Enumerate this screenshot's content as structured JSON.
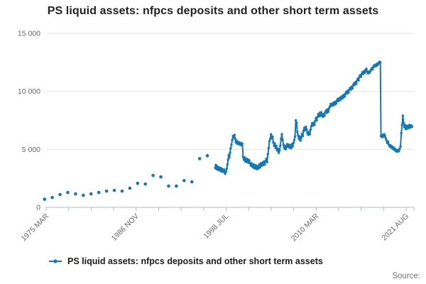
{
  "title": "PS liquid assets: nfpcs deposits and other short term assets",
  "legend": {
    "label": "PS liquid assets: nfpcs deposits and other short term assets"
  },
  "source_label": "Source:",
  "colors": {
    "series": "#1478b4",
    "grid": "#e4e4e4",
    "axis": "#a9bccd",
    "tick_label": "#666666"
  },
  "chart_data": {
    "type": "line",
    "title": "PS liquid assets: nfpcs deposits and other short term assets",
    "legend_position": "bottom",
    "grid": true,
    "ylim": [
      0,
      15000
    ],
    "x_domain": [
      1975.21,
      2022.63
    ],
    "yticks": [
      {
        "value": 0,
        "label": "0"
      },
      {
        "value": 5000,
        "label": "5 000"
      },
      {
        "value": 10000,
        "label": "10 000"
      },
      {
        "value": 15000,
        "label": "15 000"
      }
    ],
    "xticks": {
      "tick_count": 17,
      "labeled": [
        {
          "index": 0,
          "label": "1975 MAR"
        },
        {
          "index": 4,
          "label": "1986 NOV"
        },
        {
          "index": 8,
          "label": "1998 JUL"
        },
        {
          "index": 12,
          "label": "2010 MAR"
        },
        {
          "index": 16,
          "label": "2021 AUG"
        }
      ]
    },
    "series": [
      {
        "name": "PS liquid assets: nfpcs deposits and other short term assets",
        "annual_points": [
          [
            1975,
            700
          ],
          [
            1976,
            850
          ],
          [
            1977,
            1100
          ],
          [
            1978,
            1280
          ],
          [
            1979,
            1160
          ],
          [
            1980,
            1040
          ],
          [
            1981,
            1160
          ],
          [
            1982,
            1280
          ],
          [
            1983,
            1400
          ],
          [
            1984,
            1460
          ],
          [
            1985,
            1400
          ],
          [
            1986,
            1650
          ],
          [
            1987,
            2070
          ],
          [
            1988,
            2010
          ],
          [
            1989,
            2750
          ],
          [
            1990,
            2620
          ],
          [
            1991,
            1830
          ],
          [
            1992,
            1830
          ],
          [
            1993,
            2300
          ],
          [
            1994,
            2200
          ],
          [
            1995,
            4200
          ],
          [
            1996,
            4450
          ]
        ],
        "monthly_points": [
          [
            1997.0,
            3400
          ],
          [
            1997.08,
            3650
          ],
          [
            1997.17,
            3300
          ],
          [
            1997.25,
            3550
          ],
          [
            1997.33,
            3250
          ],
          [
            1997.42,
            3450
          ],
          [
            1997.5,
            3200
          ],
          [
            1997.58,
            3420
          ],
          [
            1997.67,
            3150
          ],
          [
            1997.75,
            3380
          ],
          [
            1997.83,
            3100
          ],
          [
            1997.92,
            3300
          ],
          [
            1998.0,
            3200
          ],
          [
            1998.08,
            3050
          ],
          [
            1998.17,
            3250
          ],
          [
            1998.29,
            2900
          ],
          [
            1998.42,
            3100
          ],
          [
            1998.5,
            3350
          ],
          [
            1998.58,
            3700
          ],
          [
            1998.67,
            4100
          ],
          [
            1998.75,
            4500
          ],
          [
            1998.83,
            4300
          ],
          [
            1998.92,
            4700
          ],
          [
            1999.0,
            5100
          ],
          [
            1999.1,
            5400
          ],
          [
            1999.2,
            5800
          ],
          [
            1999.3,
            6150
          ],
          [
            1999.4,
            6000
          ],
          [
            1999.5,
            6250
          ],
          [
            1999.58,
            5900
          ],
          [
            1999.67,
            5600
          ],
          [
            1999.75,
            5750
          ],
          [
            1999.83,
            5500
          ],
          [
            1999.92,
            5650
          ],
          [
            2000.0,
            5450
          ],
          [
            2000.1,
            5600
          ],
          [
            2000.2,
            5400
          ],
          [
            2000.3,
            5550
          ],
          [
            2000.4,
            5350
          ],
          [
            2000.5,
            5500
          ],
          [
            2000.6,
            4350
          ],
          [
            2000.7,
            4100
          ],
          [
            2000.8,
            4300
          ],
          [
            2000.9,
            3950
          ],
          [
            2001.0,
            4200
          ],
          [
            2001.1,
            3900
          ],
          [
            2001.2,
            4150
          ],
          [
            2001.3,
            3850
          ],
          [
            2001.4,
            4050
          ],
          [
            2001.5,
            3800
          ],
          [
            2001.6,
            3600
          ],
          [
            2001.7,
            3800
          ],
          [
            2001.8,
            3500
          ],
          [
            2001.9,
            3700
          ],
          [
            2002.0,
            3400
          ],
          [
            2002.1,
            3650
          ],
          [
            2002.2,
            3350
          ],
          [
            2002.3,
            3600
          ],
          [
            2002.4,
            3300
          ],
          [
            2002.5,
            3550
          ],
          [
            2002.6,
            3350
          ],
          [
            2002.7,
            3700
          ],
          [
            2002.8,
            3450
          ],
          [
            2002.9,
            3800
          ],
          [
            2003.0,
            3600
          ],
          [
            2003.1,
            3850
          ],
          [
            2003.2,
            3650
          ],
          [
            2003.3,
            3950
          ],
          [
            2003.4,
            3700
          ],
          [
            2003.5,
            4000
          ],
          [
            2003.6,
            4200
          ],
          [
            2003.7,
            3900
          ],
          [
            2003.8,
            4600
          ],
          [
            2003.9,
            5100
          ],
          [
            2004.0,
            5700
          ],
          [
            2004.1,
            5900
          ],
          [
            2004.2,
            6300
          ],
          [
            2004.3,
            5950
          ],
          [
            2004.4,
            6100
          ],
          [
            2004.5,
            5600
          ],
          [
            2004.6,
            5300
          ],
          [
            2004.7,
            5500
          ],
          [
            2004.8,
            5100
          ],
          [
            2004.9,
            5300
          ],
          [
            2005.0,
            4900
          ],
          [
            2005.1,
            5050
          ],
          [
            2005.2,
            4700
          ],
          [
            2005.3,
            4900
          ],
          [
            2005.4,
            5300
          ],
          [
            2005.5,
            5900
          ],
          [
            2005.6,
            6300
          ],
          [
            2005.7,
            5800
          ],
          [
            2005.8,
            5400
          ],
          [
            2005.9,
            5100
          ],
          [
            2006.0,
            5300
          ],
          [
            2006.1,
            5000
          ],
          [
            2006.2,
            5250
          ],
          [
            2006.3,
            5450
          ],
          [
            2006.4,
            5200
          ],
          [
            2006.5,
            5400
          ],
          [
            2006.6,
            5150
          ],
          [
            2006.7,
            5350
          ],
          [
            2006.8,
            5100
          ],
          [
            2006.9,
            5450
          ],
          [
            2007.0,
            5250
          ],
          [
            2007.1,
            5550
          ],
          [
            2007.2,
            5800
          ],
          [
            2007.3,
            6100
          ],
          [
            2007.4,
            7500
          ],
          [
            2007.5,
            7300
          ],
          [
            2007.6,
            6500
          ],
          [
            2007.7,
            6200
          ],
          [
            2007.8,
            5900
          ],
          [
            2007.9,
            6100
          ],
          [
            2008.0,
            5750
          ],
          [
            2008.1,
            6000
          ],
          [
            2008.2,
            6350
          ],
          [
            2008.3,
            6150
          ],
          [
            2008.4,
            6600
          ],
          [
            2008.5,
            6850
          ],
          [
            2008.6,
            6650
          ],
          [
            2008.7,
            6950
          ],
          [
            2008.8,
            6700
          ],
          [
            2008.9,
            6400
          ],
          [
            2009.0,
            6250
          ],
          [
            2009.1,
            6500
          ],
          [
            2009.2,
            6300
          ],
          [
            2009.3,
            6700
          ],
          [
            2009.4,
            7000
          ],
          [
            2009.5,
            7250
          ],
          [
            2009.6,
            7050
          ],
          [
            2009.7,
            7300
          ],
          [
            2009.8,
            7100
          ],
          [
            2009.9,
            7450
          ],
          [
            2010.0,
            7700
          ],
          [
            2010.1,
            7500
          ],
          [
            2010.2,
            7800
          ],
          [
            2010.3,
            8050
          ],
          [
            2010.4,
            7850
          ],
          [
            2010.5,
            8150
          ],
          [
            2010.6,
            7900
          ],
          [
            2010.7,
            8200
          ],
          [
            2010.8,
            7950
          ],
          [
            2010.9,
            7800
          ],
          [
            2011.0,
            8050
          ],
          [
            2011.1,
            7900
          ],
          [
            2011.2,
            8200
          ],
          [
            2011.3,
            8350
          ],
          [
            2011.4,
            8150
          ],
          [
            2011.5,
            8450
          ],
          [
            2011.6,
            8250
          ],
          [
            2011.7,
            8550
          ],
          [
            2011.8,
            8700
          ],
          [
            2011.9,
            8900
          ],
          [
            2012.0,
            8750
          ],
          [
            2012.1,
            8950
          ],
          [
            2012.2,
            8800
          ],
          [
            2012.3,
            9050
          ],
          [
            2012.4,
            8850
          ],
          [
            2012.5,
            9100
          ],
          [
            2012.6,
            8950
          ],
          [
            2012.7,
            9200
          ],
          [
            2012.8,
            9350
          ],
          [
            2012.9,
            9150
          ],
          [
            2013.0,
            9400
          ],
          [
            2013.1,
            9250
          ],
          [
            2013.2,
            9500
          ],
          [
            2013.3,
            9350
          ],
          [
            2013.4,
            9600
          ],
          [
            2013.5,
            9450
          ],
          [
            2013.6,
            9700
          ],
          [
            2013.7,
            9550
          ],
          [
            2013.8,
            9800
          ],
          [
            2013.9,
            9950
          ],
          [
            2014.0,
            9800
          ],
          [
            2014.1,
            10050
          ],
          [
            2014.2,
            9900
          ],
          [
            2014.3,
            10150
          ],
          [
            2014.4,
            10300
          ],
          [
            2014.5,
            10150
          ],
          [
            2014.6,
            10400
          ],
          [
            2014.7,
            10250
          ],
          [
            2014.8,
            10550
          ],
          [
            2014.9,
            10700
          ],
          [
            2015.0,
            10550
          ],
          [
            2015.1,
            10800
          ],
          [
            2015.2,
            10650
          ],
          [
            2015.3,
            10950
          ],
          [
            2015.4,
            11100
          ],
          [
            2015.5,
            10950
          ],
          [
            2015.6,
            11250
          ],
          [
            2015.7,
            11400
          ],
          [
            2015.8,
            11250
          ],
          [
            2015.9,
            11500
          ],
          [
            2016.0,
            11650
          ],
          [
            2016.1,
            11500
          ],
          [
            2016.2,
            11750
          ],
          [
            2016.3,
            11600
          ],
          [
            2016.4,
            11850
          ],
          [
            2016.5,
            11950
          ],
          [
            2016.6,
            11700
          ],
          [
            2016.7,
            11550
          ],
          [
            2016.8,
            11700
          ],
          [
            2016.9,
            11600
          ],
          [
            2017.0,
            11750
          ],
          [
            2017.1,
            11850
          ],
          [
            2017.2,
            12000
          ],
          [
            2017.3,
            11900
          ],
          [
            2017.4,
            12100
          ],
          [
            2017.5,
            12250
          ],
          [
            2017.6,
            12150
          ],
          [
            2017.7,
            12300
          ],
          [
            2017.8,
            12200
          ],
          [
            2017.9,
            12400
          ],
          [
            2018.0,
            12300
          ],
          [
            2018.1,
            12450
          ],
          [
            2018.2,
            12550
          ],
          [
            2018.3,
            12500
          ],
          [
            2018.38,
            6150
          ],
          [
            2018.5,
            6050
          ],
          [
            2018.6,
            6250
          ],
          [
            2018.7,
            6100
          ],
          [
            2018.8,
            6300
          ],
          [
            2018.9,
            6150
          ],
          [
            2019.0,
            5950
          ],
          [
            2019.1,
            5750
          ],
          [
            2019.2,
            5550
          ],
          [
            2019.3,
            5650
          ],
          [
            2019.4,
            5400
          ],
          [
            2019.5,
            5250
          ],
          [
            2019.6,
            5350
          ],
          [
            2019.7,
            5150
          ],
          [
            2019.8,
            5250
          ],
          [
            2019.9,
            5050
          ],
          [
            2020.0,
            5150
          ],
          [
            2020.1,
            4950
          ],
          [
            2020.2,
            5050
          ],
          [
            2020.3,
            4850
          ],
          [
            2020.4,
            4950
          ],
          [
            2020.5,
            4800
          ],
          [
            2020.6,
            4950
          ],
          [
            2020.7,
            4850
          ],
          [
            2020.8,
            5050
          ],
          [
            2020.9,
            5250
          ],
          [
            2021.0,
            6400
          ],
          [
            2021.1,
            7100
          ],
          [
            2021.2,
            7900
          ],
          [
            2021.3,
            7300
          ],
          [
            2021.4,
            6900
          ],
          [
            2021.5,
            7100
          ],
          [
            2021.6,
            6750
          ],
          [
            2021.7,
            7000
          ],
          [
            2021.8,
            6800
          ],
          [
            2021.9,
            7050
          ],
          [
            2022.0,
            6850
          ],
          [
            2022.1,
            7100
          ],
          [
            2022.2,
            6900
          ],
          [
            2022.3,
            7050
          ],
          [
            2022.4,
            6950
          ]
        ]
      }
    ]
  }
}
